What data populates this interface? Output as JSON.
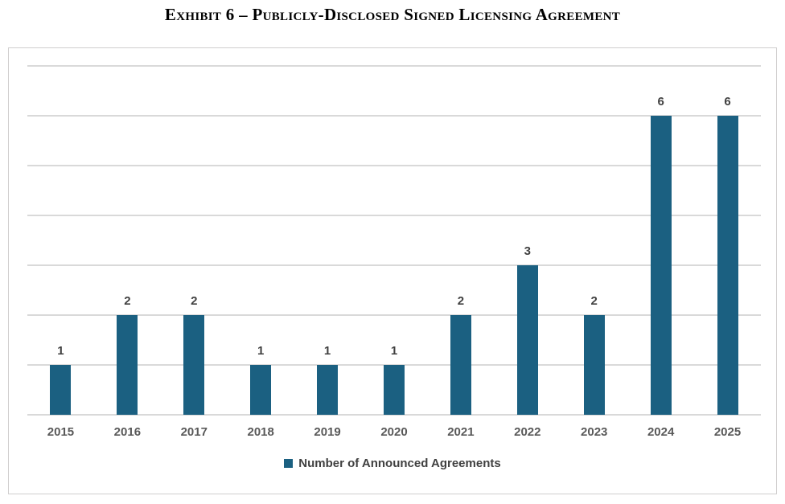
{
  "title": "Exhibit 6 – Publicly-Disclosed Signed Licensing Agreement",
  "legend": {
    "label": "Number of Announced Agreements",
    "swatch_color": "#1B6081"
  },
  "colors": {
    "bar": "#1B6081",
    "gridline": "#D9D9D9",
    "chart_border": "#D0CECE",
    "axis_label": "#595959",
    "value_label": "#404040",
    "legend_text": "#404040",
    "title_text": "#000000"
  },
  "chart_data": {
    "type": "bar",
    "title": "Exhibit 6 – Publicly-Disclosed Signed Licensing Agreement",
    "categories": [
      "2015",
      "2016",
      "2017",
      "2018",
      "2019",
      "2020",
      "2021",
      "2022",
      "2023",
      "2024",
      "2025"
    ],
    "series": [
      {
        "name": "Number of Announced Agreements",
        "values": [
          1,
          2,
          2,
          1,
          1,
          1,
          2,
          3,
          2,
          6,
          6
        ]
      }
    ],
    "xlabel": "",
    "ylabel": "",
    "ylim": [
      0,
      7
    ],
    "gridline_step": 1,
    "grid": "horizontal",
    "y_axis_labels_visible": false,
    "legend_position": "bottom",
    "data_labels": true
  }
}
